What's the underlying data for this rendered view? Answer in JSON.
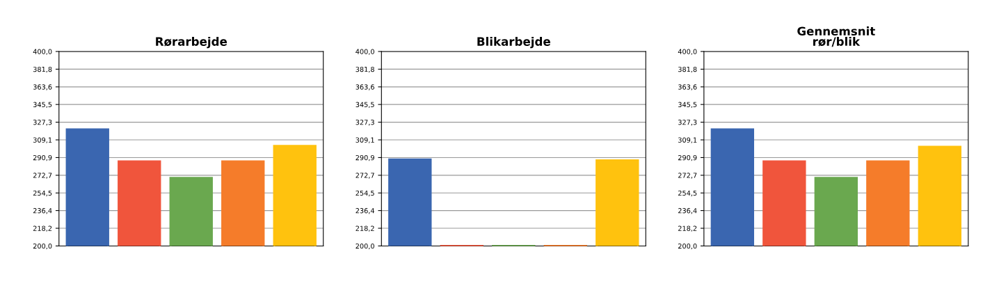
{
  "chart_data": [
    {
      "type": "bar",
      "title": "Rørarbejde",
      "categories": [
        null,
        null,
        null,
        null,
        null
      ],
      "colors": [
        "#3a66b0",
        "#f0553c",
        "#6aa84f",
        "#f57c2a",
        "#ffc20e"
      ],
      "values": [
        320,
        287,
        270,
        287,
        303
      ],
      "ylim": [
        200,
        400
      ],
      "yticks": [
        {
          "value": 200,
          "label": "200,0"
        },
        {
          "value": 218.2,
          "label": "218,2"
        },
        {
          "value": 236.4,
          "label": "236,4"
        },
        {
          "value": 254.5,
          "label": "254,5"
        },
        {
          "value": 272.7,
          "label": "272,7"
        },
        {
          "value": 290.9,
          "label": "290,9"
        },
        {
          "value": 309.1,
          "label": "309,1"
        },
        {
          "value": 327.3,
          "label": "327,3"
        },
        {
          "value": 345.5,
          "label": "345,5"
        },
        {
          "value": 363.6,
          "label": "363,6"
        },
        {
          "value": 381.8,
          "label": "381,8"
        },
        {
          "value": 400,
          "label": "400,0"
        }
      ],
      "grid": "y"
    },
    {
      "type": "bar",
      "title": "Blikarbejde",
      "categories": [
        null,
        null,
        null,
        null,
        null
      ],
      "colors": [
        "#3a66b0",
        "#f0553c",
        "#6aa84f",
        "#f57c2a",
        "#ffc20e"
      ],
      "values": [
        289,
        200,
        200,
        200,
        288
      ],
      "ylim": [
        200,
        400
      ],
      "yticks": [
        {
          "value": 200,
          "label": "200,0"
        },
        {
          "value": 218.2,
          "label": "218,2"
        },
        {
          "value": 236.4,
          "label": "236,4"
        },
        {
          "value": 254.5,
          "label": "254,5"
        },
        {
          "value": 272.7,
          "label": "272,7"
        },
        {
          "value": 290.9,
          "label": "290,9"
        },
        {
          "value": 309.1,
          "label": "309,1"
        },
        {
          "value": 327.3,
          "label": "327,3"
        },
        {
          "value": 345.5,
          "label": "345,5"
        },
        {
          "value": 363.6,
          "label": "363,6"
        },
        {
          "value": 381.8,
          "label": "381,8"
        },
        {
          "value": 400,
          "label": "400,0"
        }
      ],
      "grid": "y"
    },
    {
      "type": "bar",
      "title": "Gennemsnit\nrør/blik",
      "categories": [
        null,
        null,
        null,
        null,
        null
      ],
      "colors": [
        "#3a66b0",
        "#f0553c",
        "#6aa84f",
        "#f57c2a",
        "#ffc20e"
      ],
      "values": [
        320,
        287,
        270,
        287,
        302
      ],
      "ylim": [
        200,
        400
      ],
      "yticks": [
        {
          "value": 200,
          "label": "200,0"
        },
        {
          "value": 218.2,
          "label": "218,2"
        },
        {
          "value": 236.4,
          "label": "236,4"
        },
        {
          "value": 254.5,
          "label": "254,5"
        },
        {
          "value": 272.7,
          "label": "272,7"
        },
        {
          "value": 290.9,
          "label": "290,9"
        },
        {
          "value": 309.1,
          "label": "309,1"
        },
        {
          "value": 327.3,
          "label": "327,3"
        },
        {
          "value": 345.5,
          "label": "345,5"
        },
        {
          "value": 363.6,
          "label": "363,6"
        },
        {
          "value": 381.8,
          "label": "381,8"
        },
        {
          "value": 400,
          "label": "400,0"
        }
      ],
      "grid": "y"
    }
  ]
}
